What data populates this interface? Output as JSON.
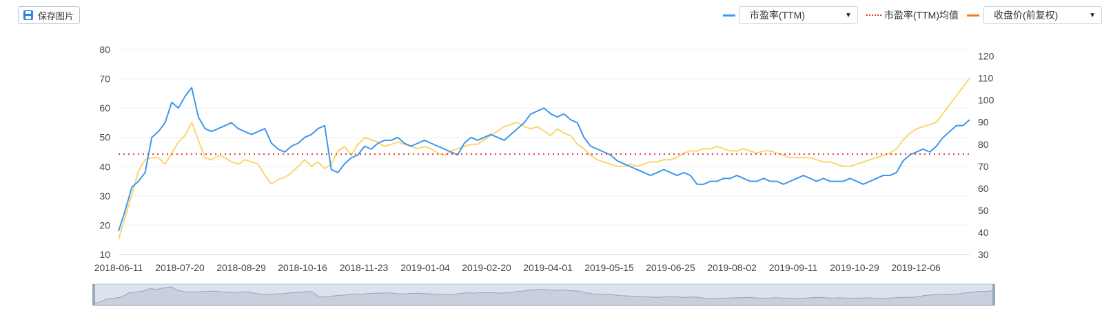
{
  "toolbar": {
    "save_label": "保存图片"
  },
  "legend": {
    "pe_select": "市盈率(TTM)",
    "pe_avg_label": "市盈率(TTM)均值",
    "price_select": "收盘价(前复权)",
    "pe_color": "#3b97f1",
    "avg_color": "#e53935",
    "price_color": "#ef7a1a",
    "price_line_color": "#fcd56e"
  },
  "chart_data": {
    "type": "line",
    "x_tick_labels": [
      "2018-06-11",
      "2018-07-20",
      "2018-08-29",
      "2018-10-16",
      "2018-11-23",
      "2019-01-04",
      "2019-02-20",
      "2019-04-01",
      "2019-05-15",
      "2019-06-25",
      "2019-08-02",
      "2019-09-11",
      "2019-10-29",
      "2019-12-06"
    ],
    "y_left": {
      "ticks": [
        10,
        20,
        30,
        40,
        50,
        60,
        70,
        80
      ],
      "range": [
        10,
        80
      ]
    },
    "y_right": {
      "ticks": [
        30,
        40,
        50,
        60,
        70,
        80,
        90,
        100,
        110,
        120
      ],
      "range": [
        30,
        123
      ]
    },
    "pe_average": 44.3,
    "series": [
      {
        "name": "市盈率(TTM)",
        "axis": "left",
        "values": [
          18,
          25,
          33,
          35,
          38,
          50,
          52,
          55,
          62,
          60,
          64,
          67,
          57,
          53,
          52,
          53,
          54,
          55,
          53,
          52,
          51,
          52,
          53,
          48,
          46,
          45,
          47,
          48,
          50,
          51,
          53,
          54,
          39,
          38,
          41,
          43,
          44,
          47,
          46,
          48,
          49,
          49,
          50,
          48,
          47,
          48,
          49,
          48,
          47,
          46,
          45,
          44,
          48,
          50,
          49,
          50,
          51,
          50,
          49,
          51,
          53,
          55,
          58,
          59,
          60,
          58,
          57,
          58,
          56,
          55,
          50,
          47,
          46,
          45,
          44,
          42,
          41,
          40,
          39,
          38,
          37,
          38,
          39,
          38,
          37,
          38,
          37,
          34,
          34,
          35,
          35,
          36,
          36,
          37,
          36,
          35,
          35,
          36,
          35,
          35,
          34,
          35,
          36,
          37,
          36,
          35,
          36,
          35,
          35,
          35,
          36,
          35,
          34,
          35,
          36,
          37,
          37,
          38,
          42,
          44,
          45,
          46,
          45,
          47,
          50,
          52,
          54,
          54,
          56
        ]
      },
      {
        "name": "收盘价(前复权)",
        "axis": "right",
        "values": [
          37,
          47,
          57,
          68,
          73,
          74,
          74,
          71,
          76,
          81,
          84,
          90,
          82,
          74,
          73,
          75,
          74,
          72,
          71,
          73,
          72,
          71,
          66,
          62,
          64,
          65,
          67,
          70,
          73,
          70,
          72,
          69,
          71,
          77,
          79,
          75,
          80,
          83,
          82,
          81,
          79,
          80,
          81,
          80,
          79,
          78,
          79,
          78,
          76,
          75,
          77,
          78,
          79,
          80,
          80,
          82,
          84,
          86,
          88,
          89,
          90,
          88,
          87,
          88,
          86,
          84,
          87,
          85,
          84,
          80,
          78,
          75,
          73,
          72,
          71,
          70,
          70,
          71,
          70,
          71,
          72,
          72,
          73,
          73,
          74,
          76,
          77,
          77,
          78,
          78,
          79,
          78,
          77,
          77,
          78,
          77,
          76,
          77,
          77,
          76,
          75,
          74,
          74,
          74,
          74,
          73,
          72,
          72,
          71,
          70,
          70,
          71,
          72,
          73,
          74,
          75,
          76,
          78,
          82,
          85,
          87,
          88,
          89,
          90,
          94,
          98,
          102,
          106,
          110
        ]
      }
    ],
    "grid": true,
    "legend_position": "top-right",
    "has_data_zoom": true
  }
}
